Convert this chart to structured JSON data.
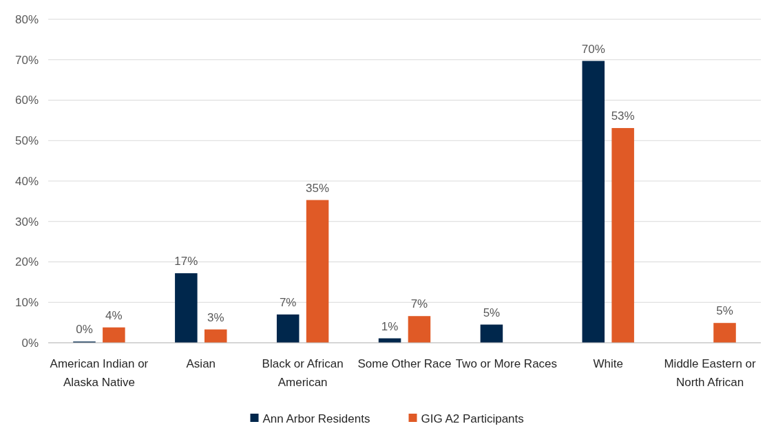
{
  "chart_data": {
    "type": "bar",
    "categories": [
      "American Indian or Alaska Native",
      "Asian",
      "Black or African American",
      "Some Other Race",
      "Two or More Races",
      "White",
      "Middle Eastern or North African"
    ],
    "series": [
      {
        "name": "Ann Arbor Residents",
        "color": "#00274c",
        "values": [
          0.3,
          17.2,
          7.0,
          1.1,
          4.5,
          69.7,
          null
        ],
        "value_labels": [
          "0%",
          "17%",
          "7%",
          "1%",
          "5%",
          "70%",
          null
        ]
      },
      {
        "name": "GIG A2 Participants",
        "color": "#e05a26",
        "values": [
          3.8,
          3.3,
          35.3,
          6.6,
          null,
          53.1,
          4.9
        ],
        "value_labels": [
          "4%",
          "3%",
          "35%",
          "7%",
          null,
          "53%",
          "5%"
        ]
      }
    ],
    "ylim": [
      0,
      80
    ],
    "yticks": [
      {
        "value": 0,
        "label": "0%"
      },
      {
        "value": 10,
        "label": "10%"
      },
      {
        "value": 20,
        "label": "20%"
      },
      {
        "value": 30,
        "label": "30%"
      },
      {
        "value": 40,
        "label": "40%"
      },
      {
        "value": 50,
        "label": "50%"
      },
      {
        "value": 60,
        "label": "60%"
      },
      {
        "value": 70,
        "label": "70%"
      },
      {
        "value": 80,
        "label": "80%"
      }
    ],
    "grid": "y",
    "legend": "bottom"
  }
}
